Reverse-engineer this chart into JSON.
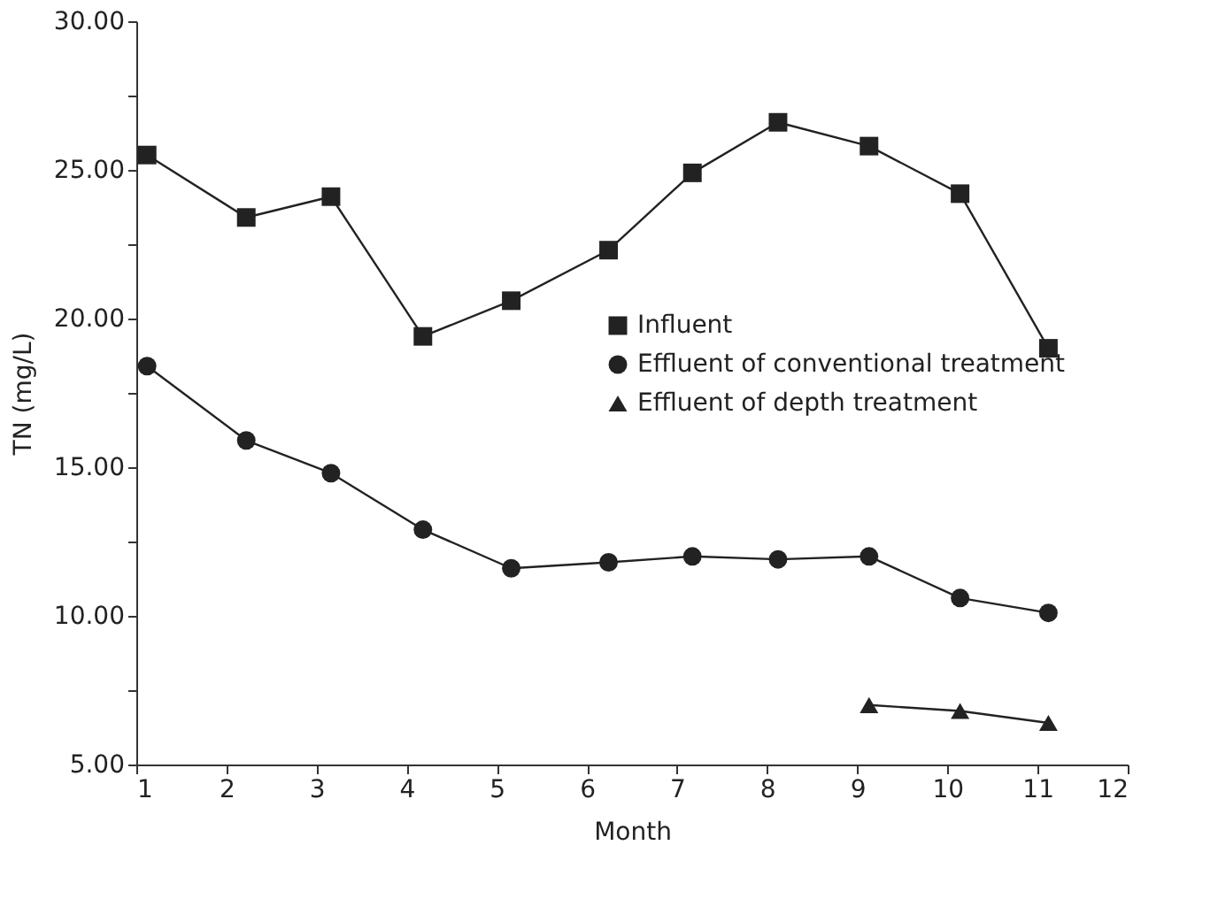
{
  "chart_data": {
    "type": "line",
    "xlabel": "Month",
    "ylabel": "TN (mg/L)",
    "xlim": [
      1,
      12
    ],
    "xticks": [
      1,
      2,
      3,
      4,
      5,
      6,
      7,
      8,
      9,
      10,
      11,
      12
    ],
    "ylim": [
      5,
      30
    ],
    "yticks": [
      {
        "value": 5,
        "label": "5.00"
      },
      {
        "value": 7.5,
        "label": null
      },
      {
        "value": 10,
        "label": "10.00"
      },
      {
        "value": 12.5,
        "label": null
      },
      {
        "value": 15,
        "label": "15.00"
      },
      {
        "value": 17.5,
        "label": null
      },
      {
        "value": 20,
        "label": "20.00"
      },
      {
        "value": 22.5,
        "label": null
      },
      {
        "value": 25,
        "label": "25.00"
      },
      {
        "value": 27.5,
        "label": null
      },
      {
        "value": 30,
        "label": "30.00"
      }
    ],
    "grid": false,
    "legend": "right",
    "line_style": "solid",
    "series": [
      {
        "name": "Influent",
        "color": "#222222",
        "marker": "square",
        "x": [
          1.12,
          2.22,
          3.16,
          4.18,
          5.16,
          6.24,
          7.17,
          8.12,
          9.13,
          10.14,
          11.12
        ],
        "values": [
          25.5,
          23.4,
          24.1,
          19.4,
          20.6,
          22.3,
          24.9,
          26.6,
          25.8,
          24.2,
          19.0
        ]
      },
      {
        "name": "Effluent of conventional treatment",
        "color": "#222222",
        "marker": "circle",
        "x": [
          1.12,
          2.22,
          3.16,
          4.18,
          5.16,
          6.24,
          7.17,
          8.12,
          9.13,
          10.14,
          11.12
        ],
        "values": [
          18.4,
          15.9,
          14.8,
          12.9,
          11.6,
          11.8,
          12.0,
          11.9,
          12.0,
          10.6,
          10.1
        ]
      },
      {
        "name": "Effluent of depth treatment",
        "color": "#222222",
        "marker": "triangle",
        "x": [
          9.13,
          10.14,
          11.12
        ],
        "values": [
          7.0,
          6.8,
          6.4
        ]
      }
    ]
  }
}
